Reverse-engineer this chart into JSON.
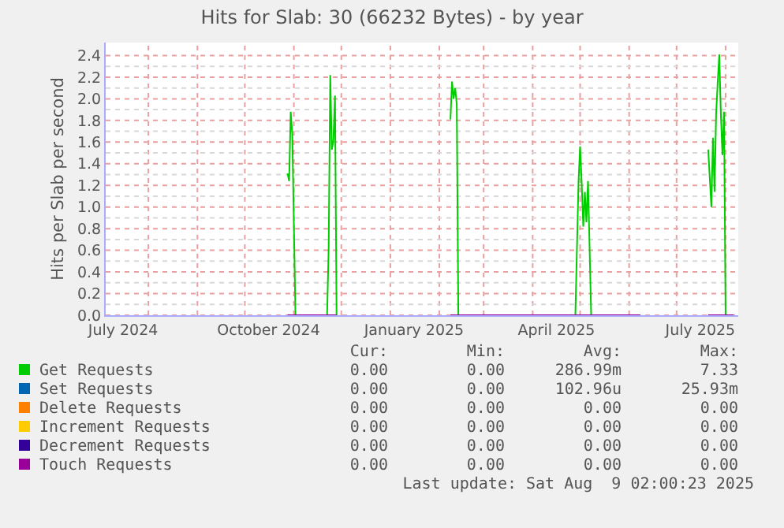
{
  "chart_data": {
    "type": "line",
    "title": "Hits for Slab: 30 (66232 Bytes) - by year",
    "ylabel": "Hits per Slab per second",
    "x": [
      "2024-10-28",
      "2024-10-29",
      "2024-10-30",
      "2024-10-31",
      "2024-11-02",
      "2024-11-22",
      "2024-11-23",
      "2024-11-24",
      "2024-11-25",
      "2024-11-26",
      "2024-11-27",
      "2024-11-28",
      "2024-12-15",
      "2025-02-08",
      "2025-02-09",
      "2025-02-10",
      "2025-02-11",
      "2025-02-12",
      "2025-02-13",
      "2025-04-28",
      "2025-04-30",
      "2025-05-01",
      "2025-05-02",
      "2025-05-03",
      "2025-05-04",
      "2025-05-05",
      "2025-05-06",
      "2025-05-08",
      "2025-06-08",
      "2025-07-01",
      "2025-07-21",
      "2025-07-23",
      "2025-07-24",
      "2025-07-25",
      "2025-07-26",
      "2025-07-27",
      "2025-07-28",
      "2025-07-29",
      "2025-07-30",
      "2025-07-31",
      "2025-08-01",
      "2025-08-06"
    ],
    "series": [
      {
        "name": "Get Requests",
        "color": "#00cc00",
        "values": [
          1.31,
          1.24,
          1.88,
          1.67,
          0,
          0,
          0.62,
          2.22,
          1.53,
          1.62,
          2.03,
          0,
          null,
          1.81,
          2.16,
          2.0,
          2.1,
          1.95,
          0,
          0,
          1.24,
          1.56,
          1.22,
          0.82,
          1.14,
          0.86,
          1.24,
          0,
          0,
          null,
          1.53,
          1.0,
          1.64,
          1.14,
          1.86,
          2.15,
          2.41,
          1.86,
          1.48,
          1.88,
          0,
          0
        ]
      },
      {
        "name": "Set Requests",
        "color": "#0066b3",
        "values": [
          null,
          null,
          null,
          null,
          null,
          null,
          null,
          null,
          null,
          null,
          null,
          null,
          null,
          null,
          null,
          null,
          null,
          null,
          null,
          null,
          null,
          null,
          null,
          null,
          null,
          null,
          null,
          null,
          null,
          null,
          null,
          null,
          null,
          null,
          null,
          null,
          null,
          null,
          null,
          null,
          null,
          null
        ]
      },
      {
        "name": "Delete Requests",
        "color": "#ff8000",
        "values": [
          null,
          null,
          null,
          null,
          null,
          null,
          null,
          null,
          null,
          null,
          null,
          null,
          null,
          null,
          null,
          null,
          null,
          null,
          null,
          null,
          null,
          null,
          null,
          null,
          null,
          null,
          null,
          null,
          null,
          null,
          null,
          null,
          null,
          null,
          null,
          null,
          null,
          null,
          null,
          null,
          null,
          null
        ]
      },
      {
        "name": "Increment Requests",
        "color": "#ffcc00",
        "values": [
          null,
          null,
          null,
          null,
          null,
          null,
          null,
          null,
          null,
          null,
          null,
          null,
          null,
          null,
          null,
          null,
          null,
          null,
          null,
          null,
          null,
          null,
          null,
          null,
          null,
          null,
          null,
          null,
          null,
          null,
          null,
          null,
          null,
          null,
          null,
          null,
          null,
          null,
          null,
          null,
          null,
          null
        ]
      },
      {
        "name": "Decrement Requests",
        "color": "#330099",
        "values": [
          null,
          null,
          null,
          null,
          null,
          null,
          null,
          null,
          null,
          null,
          null,
          null,
          null,
          null,
          null,
          null,
          null,
          null,
          null,
          null,
          null,
          null,
          null,
          null,
          null,
          null,
          null,
          null,
          null,
          null,
          null,
          null,
          null,
          null,
          null,
          null,
          null,
          null,
          null,
          null,
          null,
          null
        ]
      },
      {
        "name": "Touch Requests",
        "color": "#990099",
        "values": [
          0,
          0,
          0,
          0,
          0,
          0,
          0,
          0,
          0,
          0,
          0,
          0,
          null,
          0,
          0,
          0,
          0,
          0,
          0,
          0,
          0,
          0,
          0,
          0,
          0,
          0,
          0,
          0,
          0,
          null,
          0,
          0,
          0,
          0,
          0,
          0,
          0,
          0,
          0,
          0,
          0,
          0
        ]
      }
    ],
    "xlim": [
      "2024-07-05",
      "2025-08-09"
    ],
    "xticks": [
      {
        "value": "2024-07-16",
        "label": "July 2024"
      },
      {
        "value": "2024-10-16",
        "label": "October 2024"
      },
      {
        "value": "2025-01-16",
        "label": "January 2025"
      },
      {
        "value": "2025-04-16",
        "label": "April 2025"
      },
      {
        "value": "2025-07-16",
        "label": "July 2025"
      },
      {
        "value": "2024-08-01",
        "label": null
      },
      {
        "value": "2024-09-01",
        "label": null
      },
      {
        "value": "2024-10-01",
        "label": null
      },
      {
        "value": "2024-11-01",
        "label": null
      },
      {
        "value": "2024-12-01",
        "label": null
      },
      {
        "value": "2025-01-01",
        "label": null
      },
      {
        "value": "2025-02-01",
        "label": null
      },
      {
        "value": "2025-03-01",
        "label": null
      },
      {
        "value": "2025-04-01",
        "label": null
      },
      {
        "value": "2025-05-01",
        "label": null
      },
      {
        "value": "2025-06-01",
        "label": null
      },
      {
        "value": "2025-07-01",
        "label": null
      },
      {
        "value": "2025-08-01",
        "label": null
      }
    ],
    "ylim": [
      0,
      2.52
    ],
    "yticks": [
      {
        "value": 0,
        "label": "0.0"
      },
      0.2,
      0.4,
      0.6,
      0.8,
      {
        "value": 1,
        "label": "1.0"
      },
      1.2,
      1.4,
      1.6,
      1.8,
      {
        "value": 2,
        "label": "2.0"
      },
      2.2,
      2.4,
      {
        "value": 0.1,
        "label": null
      },
      {
        "value": 0.3,
        "label": null
      },
      {
        "value": 0.5,
        "label": null
      },
      {
        "value": 0.7,
        "label": null
      },
      {
        "value": 0.9,
        "label": null
      },
      {
        "value": 1.1,
        "label": null
      },
      {
        "value": 1.3,
        "label": null
      },
      {
        "value": 1.5,
        "label": null
      },
      {
        "value": 1.7,
        "label": null
      },
      {
        "value": 1.9,
        "label": null
      },
      {
        "value": 2.1,
        "label": null
      },
      {
        "value": 2.3,
        "label": null
      }
    ],
    "grid": true,
    "legend": "bottom",
    "line_style": "solid",
    "marker": "none",
    "annotations": [
      "Cur:",
      "Min:",
      "Avg:",
      "Max:",
      "0.00",
      "0.00",
      "286.99m",
      "7.33",
      "0.00",
      "0.00",
      "102.96u",
      "25.93m",
      "0.00",
      "0.00",
      "0.00",
      "0.00",
      "0.00",
      "0.00",
      "0.00",
      "0.00",
      "0.00",
      "0.00",
      "0.00",
      "0.00",
      "0.00",
      "0.00",
      "0.00",
      "0.00",
      "Last update: Sat Aug  9 02:00:23 2025"
    ]
  }
}
